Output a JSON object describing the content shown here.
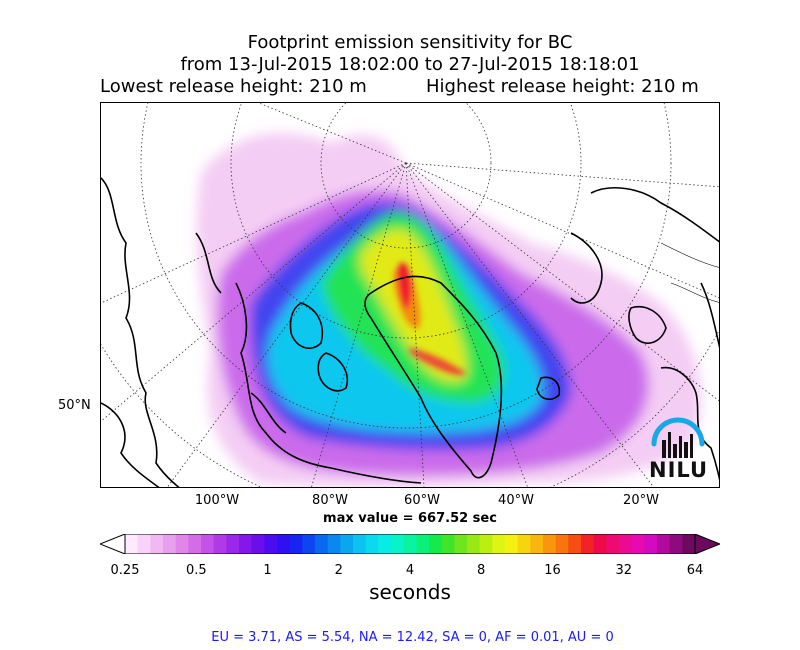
{
  "title": {
    "line1": "Footprint emission sensitivity for BC",
    "line2": "from 13-Jul-2015 18:02:00 to 27-Jul-2015 18:18:01",
    "line3_left": "Lowest release height: 210 m",
    "line3_right": "Highest release height: 210 m"
  },
  "chart_data": {
    "type": "heatmap",
    "title": "Footprint emission sensitivity for BC",
    "x_tick_labels": [
      "100°W",
      "80°W",
      "60°W",
      "40°W",
      "20°W"
    ],
    "y_tick_labels": [
      "50°N"
    ],
    "max_value_label": "max value = 667.52 sec",
    "colorbar": {
      "label": "seconds",
      "scale": "log",
      "range": [
        0.25,
        64
      ],
      "tick_values": [
        0.25,
        0.5,
        1,
        2,
        4,
        8,
        16,
        32,
        64
      ],
      "tick_labels": [
        "0.25",
        "0.5",
        "1",
        "2",
        "4",
        "8",
        "16",
        "32",
        "64"
      ],
      "extend": "both",
      "colors": [
        "#fdeafd",
        "#f8d2f8",
        "#f1b9f1",
        "#e9a0ec",
        "#df86e8",
        "#d46ce6",
        "#c452e8",
        "#b03be6",
        "#9a28e8",
        "#8418ea",
        "#6a0eea",
        "#4c0cef",
        "#2f10f2",
        "#1626f0",
        "#0c46ef",
        "#0a68ee",
        "#0988ef",
        "#0aa6ef",
        "#0bc2f0",
        "#0ad9ee",
        "#09ebe5",
        "#0af2c8",
        "#0af3a3",
        "#0bf07a",
        "#16ea4b",
        "#3fe52a",
        "#6ee51d",
        "#98e816",
        "#bdee12",
        "#def412",
        "#f6f010",
        "#f7d50e",
        "#f8b60e",
        "#f8960e",
        "#f7740f",
        "#f54d12",
        "#f12326",
        "#ee0a4a",
        "#ee0a70",
        "#ec0a93",
        "#e70ab3",
        "#d40ac0",
        "#b10a9c",
        "#8f0a7e",
        "#6d0a5e"
      ]
    }
  },
  "footer": "EU = 3.71,  AS = 5.54,  NA = 12.42,  SA = 0,  AF = 0.01,  AU = 0",
  "logo": {
    "text": "NILU",
    "arc_color": "#1aa7e6"
  }
}
